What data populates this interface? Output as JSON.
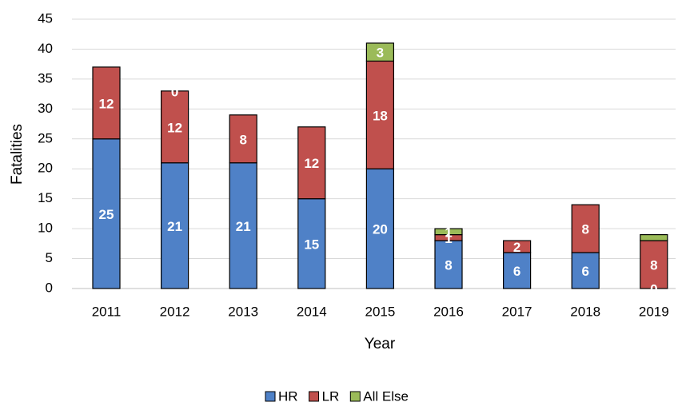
{
  "chart_data": {
    "type": "stacked_bar",
    "x_label": "Year",
    "y_label": "Fatalities",
    "categories": [
      "2011",
      "2012",
      "2013",
      "2014",
      "2015",
      "2016",
      "2017",
      "2018",
      "2019"
    ],
    "series": [
      {
        "name": "HR",
        "color": "#4f81c7",
        "values": [
          25,
          21,
          21,
          15,
          20,
          8,
          6,
          6,
          0
        ],
        "value_labels": [
          "25",
          "21",
          "21",
          "15",
          "20",
          "8",
          "6",
          "6",
          "0"
        ]
      },
      {
        "name": "LR",
        "color": "#c0504d",
        "values": [
          12,
          12,
          8,
          12,
          18,
          1,
          2,
          8,
          8
        ],
        "value_labels": [
          "12",
          "12",
          "8",
          "12",
          "18",
          "1",
          "2",
          "8",
          "8"
        ]
      },
      {
        "name": "All Else",
        "color": "#9bbb59",
        "values": [
          0,
          0,
          0,
          0,
          3,
          1,
          0,
          0,
          1
        ],
        "value_labels": [
          null,
          "0",
          null,
          null,
          "3",
          "1",
          null,
          null,
          null
        ]
      }
    ],
    "ylim": [
      0,
      45
    ],
    "yticks": [
      0,
      5,
      10,
      15,
      20,
      25,
      30,
      35,
      40,
      45
    ],
    "grid": true,
    "legend": "bottom"
  }
}
